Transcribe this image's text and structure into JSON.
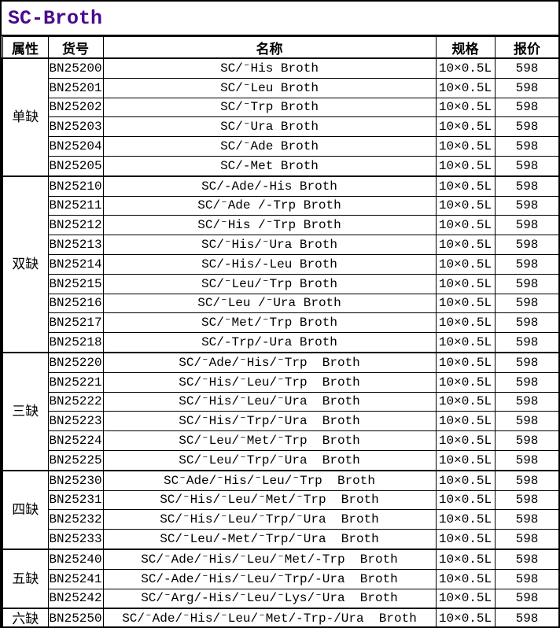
{
  "title": "SC-Broth",
  "accent_color": "#4a0a8c",
  "header": {
    "attribute": "属性",
    "catalog_no": "货号",
    "name": "名称",
    "spec": "规格",
    "price": "报价"
  },
  "sections": [
    {
      "attribute": "单缺",
      "rows": [
        {
          "catalog_no": "BN25200",
          "name": "SC/⁻His Broth",
          "spec": "10×0.5L",
          "price": "598"
        },
        {
          "catalog_no": "BN25201",
          "name": "SC/⁻Leu Broth",
          "spec": "10×0.5L",
          "price": "598"
        },
        {
          "catalog_no": "BN25202",
          "name": "SC/⁻Trp Broth",
          "spec": "10×0.5L",
          "price": "598"
        },
        {
          "catalog_no": "BN25203",
          "name": "SC/⁻Ura Broth",
          "spec": "10×0.5L",
          "price": "598"
        },
        {
          "catalog_no": "BN25204",
          "name": "SC/⁻Ade Broth",
          "spec": "10×0.5L",
          "price": "598"
        },
        {
          "catalog_no": "BN25205",
          "name": "SC/-Met Broth",
          "spec": "10×0.5L",
          "price": "598"
        }
      ]
    },
    {
      "attribute": "双缺",
      "rows": [
        {
          "catalog_no": "BN25210",
          "name": "SC/-Ade/-His Broth",
          "spec": "10×0.5L",
          "price": "598"
        },
        {
          "catalog_no": "BN25211",
          "name": "SC/⁻Ade /-Trp Broth",
          "spec": "10×0.5L",
          "price": "598"
        },
        {
          "catalog_no": "BN25212",
          "name": "SC/⁻His /⁻Trp Broth",
          "spec": "10×0.5L",
          "price": "598"
        },
        {
          "catalog_no": "BN25213",
          "name": "SC/⁻His/⁻Ura Broth",
          "spec": "10×0.5L",
          "price": "598"
        },
        {
          "catalog_no": "BN25214",
          "name": "SC/-His/-Leu Broth",
          "spec": "10×0.5L",
          "price": "598"
        },
        {
          "catalog_no": "BN25215",
          "name": "SC/⁻Leu/⁻Trp Broth",
          "spec": "10×0.5L",
          "price": "598"
        },
        {
          "catalog_no": "BN25216",
          "name": "SC/⁻Leu /⁻Ura Broth",
          "spec": "10×0.5L",
          "price": "598"
        },
        {
          "catalog_no": "BN25217",
          "name": "SC/⁻Met/⁻Trp Broth",
          "spec": "10×0.5L",
          "price": "598"
        },
        {
          "catalog_no": "BN25218",
          "name": "SC/-Trp/-Ura Broth",
          "spec": "10×0.5L",
          "price": "598"
        }
      ]
    },
    {
      "attribute": "三缺",
      "rows": [
        {
          "catalog_no": "BN25220",
          "name": "SC/⁻Ade/⁻His/⁻Trp  Broth",
          "spec": "10×0.5L",
          "price": "598"
        },
        {
          "catalog_no": "BN25221",
          "name": "SC/⁻His/⁻Leu/⁻Trp  Broth",
          "spec": "10×0.5L",
          "price": "598"
        },
        {
          "catalog_no": "BN25222",
          "name": "SC/⁻His/⁻Leu/⁻Ura  Broth",
          "spec": "10×0.5L",
          "price": "598"
        },
        {
          "catalog_no": "BN25223",
          "name": "SC/⁻His/⁻Trp/⁻Ura  Broth",
          "spec": "10×0.5L",
          "price": "598"
        },
        {
          "catalog_no": "BN25224",
          "name": "SC/⁻Leu/⁻Met/⁻Trp  Broth",
          "spec": "10×0.5L",
          "price": "598"
        },
        {
          "catalog_no": "BN25225",
          "name": "SC/⁻Leu/⁻Trp/⁻Ura  Broth",
          "spec": "10×0.5L",
          "price": "598"
        }
      ]
    },
    {
      "attribute": "四缺",
      "rows": [
        {
          "catalog_no": "BN25230",
          "name": "SC⁻Ade/⁻His/⁻Leu/⁻Trp  Broth",
          "spec": "10×0.5L",
          "price": "598"
        },
        {
          "catalog_no": "BN25231",
          "name": "SC/⁻His/⁻Leu/⁻Met/⁻Trp  Broth",
          "spec": "10×0.5L",
          "price": "598"
        },
        {
          "catalog_no": "BN25232",
          "name": "SC/⁻His/⁻Leu/⁻Trp/⁻Ura  Broth",
          "spec": "10×0.5L",
          "price": "598"
        },
        {
          "catalog_no": "BN25233",
          "name": "SC/⁻Leu/-Met/⁻Trp/⁻Ura  Broth",
          "spec": "10×0.5L",
          "price": "598"
        }
      ]
    },
    {
      "attribute": "五缺",
      "rows": [
        {
          "catalog_no": "BN25240",
          "name": "SC/⁻Ade/⁻His/⁻Leu/⁻Met/-Trp  Broth",
          "spec": "10×0.5L",
          "price": "598"
        },
        {
          "catalog_no": "BN25241",
          "name": "SC/-Ade/⁻His/⁻Leu/⁻Trp/-Ura  Broth",
          "spec": "10×0.5L",
          "price": "598"
        },
        {
          "catalog_no": "BN25242",
          "name": "SC/⁻Arg/-His/⁻Leu/⁻Lys/⁻Ura  Broth",
          "spec": "10×0.5L",
          "price": "598"
        }
      ]
    },
    {
      "attribute": "六缺",
      "rows": [
        {
          "catalog_no": "BN25250",
          "name": "SC/⁻Ade/⁻His/⁻Leu/⁻Met/-Trp-/Ura  Broth",
          "spec": "10×0.5L",
          "price": "598"
        }
      ]
    }
  ]
}
